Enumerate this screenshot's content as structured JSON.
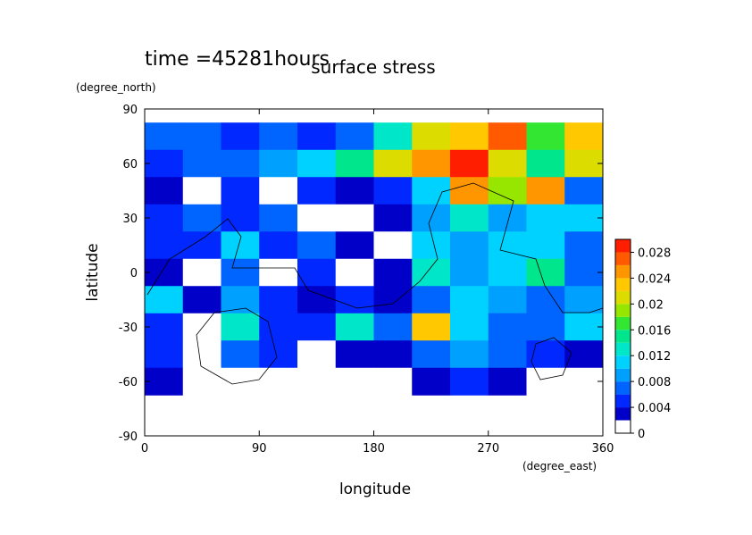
{
  "chart_data": {
    "type": "heatmap",
    "title": "surface stress",
    "subtitle": "time =45281hours",
    "x_label": "longitude",
    "y_label": "latitude",
    "x_unit": "(degree_east)",
    "y_unit": "(degree_north)",
    "xlim": [
      0,
      360
    ],
    "xticks": [
      0,
      90,
      180,
      270,
      360
    ],
    "ylim": [
      -90,
      90
    ],
    "yticks": [
      -90,
      -60,
      -30,
      0,
      30,
      60,
      90
    ],
    "x": [
      15,
      45,
      75,
      105,
      135,
      165,
      195,
      225,
      255,
      285,
      315,
      345
    ],
    "y": [
      75,
      60,
      45,
      30,
      15,
      0,
      -15,
      -30,
      -45,
      -60
    ],
    "z": [
      [
        0.006,
        0.006,
        0.005,
        0.006,
        0.004,
        0.006,
        0.012,
        0.02,
        0.022,
        0.026,
        0.016,
        0.022
      ],
      [
        0.004,
        0.006,
        0.006,
        0.008,
        0.01,
        0.014,
        0.02,
        0.024,
        0.028,
        0.02,
        0.014,
        0.02
      ],
      [
        0.003,
        0.001,
        0.004,
        0.001,
        0.005,
        0.002,
        0.004,
        0.01,
        0.024,
        0.018,
        0.024,
        0.006
      ],
      [
        0.005,
        0.006,
        0.004,
        0.006,
        0.001,
        0.001,
        0.003,
        0.008,
        0.012,
        0.008,
        0.01,
        0.01
      ],
      [
        0.004,
        0.004,
        0.01,
        0.004,
        0.006,
        0.002,
        0.001,
        0.01,
        0.008,
        0.01,
        0.01,
        0.006
      ],
      [
        0.002,
        0.001,
        0.006,
        0.001,
        0.004,
        0.001,
        0.002,
        0.012,
        0.008,
        0.01,
        0.014,
        0.006
      ],
      [
        0.01,
        0.003,
        0.008,
        0.004,
        0.002,
        0.004,
        0.003,
        0.006,
        0.01,
        0.008,
        0.006,
        0.008
      ],
      [
        0.004,
        0.001,
        0.012,
        0.004,
        0.004,
        0.012,
        0.006,
        0.022,
        0.01,
        0.006,
        0.006,
        0.01
      ],
      [
        0.004,
        0.001,
        0.006,
        0.004,
        0.001,
        0.002,
        0.003,
        0.006,
        0.008,
        0.006,
        0.004,
        0.003
      ],
      [
        0.002,
        0.001,
        0.001,
        0.001,
        0.001,
        0.001,
        0.001,
        0.002,
        0.004,
        0.002,
        0.001,
        0.001
      ]
    ],
    "levels": [
      0,
      0.002,
      0.004,
      0.006,
      0.008,
      0.01,
      0.012,
      0.014,
      0.016,
      0.018,
      0.02,
      0.022,
      0.024,
      0.026,
      0.028,
      0.03
    ],
    "colors": [
      "#ffffff",
      "#0000c8",
      "#0028ff",
      "#0064ff",
      "#00a0ff",
      "#00d2ff",
      "#00e6c8",
      "#00e68c",
      "#32e632",
      "#96e600",
      "#dcdc00",
      "#ffc800",
      "#ff9600",
      "#ff5a00",
      "#ff1e00"
    ],
    "colorbar_ticks": [
      0,
      0.004,
      0.008,
      0.012,
      0.016,
      0.02,
      0.024,
      0.028
    ]
  }
}
